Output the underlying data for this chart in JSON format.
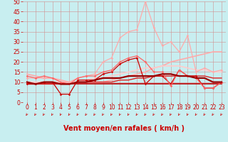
{
  "title": "",
  "xlabel": "Vent moyen/en rafales ( km/h )",
  "ylabel": "",
  "xlim": [
    -0.5,
    23.5
  ],
  "ylim": [
    0,
    50
  ],
  "yticks": [
    0,
    5,
    10,
    15,
    20,
    25,
    30,
    35,
    40,
    45,
    50
  ],
  "xticks": [
    0,
    1,
    2,
    3,
    4,
    5,
    6,
    7,
    8,
    9,
    10,
    11,
    12,
    13,
    14,
    15,
    16,
    17,
    18,
    19,
    20,
    21,
    22,
    23
  ],
  "bg_color": "#c8eef0",
  "grid_color": "#d09090",
  "lines": [
    {
      "x": [
        0,
        1,
        2,
        3,
        4,
        5,
        6,
        7,
        8,
        9,
        10,
        11,
        12,
        13,
        14,
        15,
        16,
        17,
        18,
        19,
        20,
        21,
        22,
        23
      ],
      "y": [
        9,
        9,
        9,
        9,
        9,
        9,
        9,
        9,
        9,
        9,
        9,
        9,
        9,
        9,
        9,
        9,
        9,
        9,
        9,
        9,
        9,
        9,
        9,
        9
      ],
      "color": "#bb0000",
      "lw": 1.2,
      "marker": null,
      "zorder": 3
    },
    {
      "x": [
        0,
        1,
        2,
        3,
        4,
        5,
        6,
        7,
        8,
        9,
        10,
        11,
        12,
        13,
        14,
        15,
        16,
        17,
        18,
        19,
        20,
        21,
        22,
        23
      ],
      "y": [
        9,
        9,
        9,
        9,
        9,
        9,
        10,
        10,
        10,
        10,
        10,
        11,
        11,
        12,
        12,
        13,
        13,
        13,
        13,
        13,
        13,
        13,
        12,
        12
      ],
      "color": "#dd2222",
      "lw": 1.0,
      "marker": null,
      "zorder": 3
    },
    {
      "x": [
        0,
        1,
        2,
        3,
        4,
        5,
        6,
        7,
        8,
        9,
        10,
        11,
        12,
        13,
        14,
        15,
        16,
        17,
        18,
        19,
        20,
        21,
        22,
        23
      ],
      "y": [
        14,
        13,
        12,
        12,
        11,
        10,
        10,
        10,
        10,
        10,
        11,
        12,
        13,
        14,
        15,
        17,
        18,
        20,
        21,
        22,
        23,
        24,
        25,
        25
      ],
      "color": "#ffaaaa",
      "lw": 1.2,
      "marker": null,
      "zorder": 2
    },
    {
      "x": [
        0,
        1,
        2,
        3,
        4,
        5,
        6,
        7,
        8,
        9,
        10,
        11,
        12,
        13,
        14,
        15,
        16,
        17,
        18,
        19,
        20,
        21,
        22,
        23
      ],
      "y": [
        10,
        10,
        10,
        10,
        10,
        10,
        10,
        11,
        12,
        12,
        13,
        14,
        15,
        16,
        17,
        17,
        18,
        18,
        18,
        17,
        16,
        16,
        15,
        15
      ],
      "color": "#ffcccc",
      "lw": 1.2,
      "marker": null,
      "zorder": 2
    },
    {
      "x": [
        0,
        1,
        2,
        3,
        4,
        5,
        6,
        7,
        8,
        9,
        10,
        11,
        12,
        13,
        14,
        15,
        16,
        17,
        18,
        19,
        20,
        21,
        22,
        23
      ],
      "y": [
        9,
        9,
        10,
        10,
        4,
        4,
        11,
        11,
        11,
        14,
        15,
        19,
        21,
        22,
        9,
        13,
        13,
        9,
        16,
        13,
        13,
        7,
        7,
        10
      ],
      "color": "#cc0000",
      "lw": 0.9,
      "marker": "D",
      "markersize": 1.8,
      "zorder": 4
    },
    {
      "x": [
        0,
        1,
        2,
        3,
        4,
        5,
        6,
        7,
        8,
        9,
        10,
        11,
        12,
        13,
        14,
        15,
        16,
        17,
        18,
        19,
        20,
        21,
        22,
        23
      ],
      "y": [
        12,
        12,
        12,
        12,
        10,
        10,
        12,
        13,
        14,
        20,
        22,
        32,
        35,
        36,
        50,
        37,
        28,
        30,
        25,
        33,
        15,
        17,
        15,
        16
      ],
      "color": "#ffaaaa",
      "lw": 0.9,
      "marker": "D",
      "markersize": 1.8,
      "zorder": 4
    },
    {
      "x": [
        0,
        1,
        2,
        3,
        4,
        5,
        6,
        7,
        8,
        9,
        10,
        11,
        12,
        13,
        14,
        15,
        16,
        17,
        18,
        19,
        20,
        21,
        22,
        23
      ],
      "y": [
        13,
        12,
        13,
        12,
        10,
        9,
        12,
        13,
        13,
        15,
        16,
        20,
        22,
        23,
        20,
        15,
        15,
        8,
        16,
        13,
        12,
        7,
        7,
        10
      ],
      "color": "#ff6666",
      "lw": 0.9,
      "marker": "D",
      "markersize": 1.8,
      "zorder": 4
    },
    {
      "x": [
        0,
        1,
        2,
        3,
        4,
        5,
        6,
        7,
        8,
        9,
        10,
        11,
        12,
        13,
        14,
        15,
        16,
        17,
        18,
        19,
        20,
        21,
        22,
        23
      ],
      "y": [
        10,
        9,
        10,
        10,
        9,
        9,
        10,
        10,
        11,
        12,
        12,
        12,
        13,
        13,
        13,
        13,
        14,
        14,
        13,
        13,
        12,
        12,
        10,
        10
      ],
      "color": "#990000",
      "lw": 1.6,
      "marker": null,
      "zorder": 5
    }
  ],
  "arrow_color": "#cc2222",
  "xlabel_color": "#cc0000",
  "xlabel_fontsize": 7,
  "tick_fontsize": 5.5,
  "tick_color": "#cc0000"
}
